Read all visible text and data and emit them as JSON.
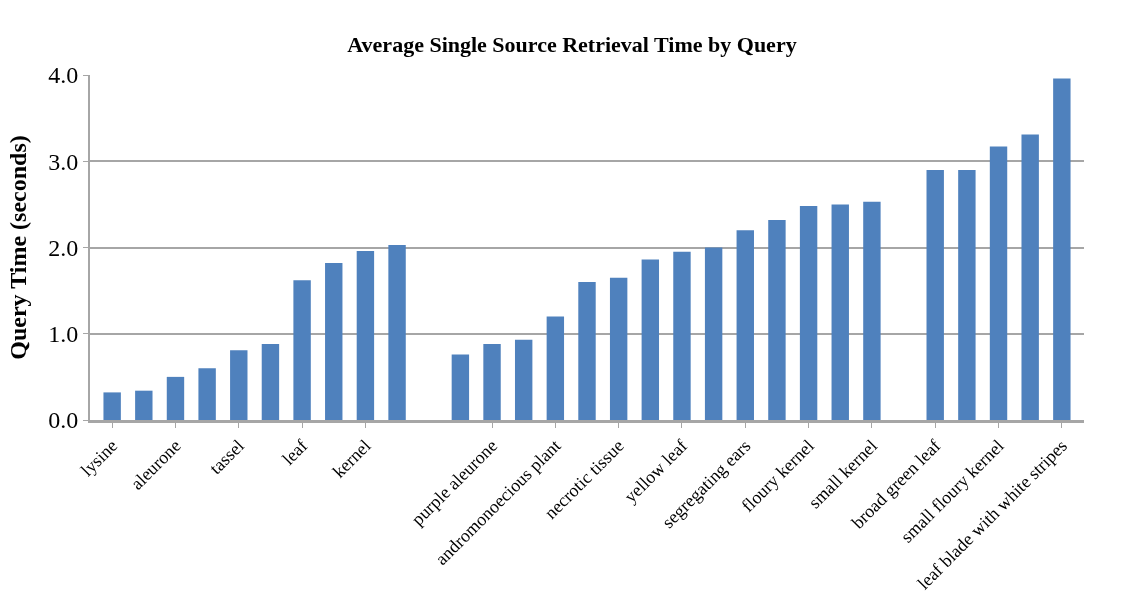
{
  "chart_data": {
    "type": "bar",
    "title": "Average Single Source Retrieval Time by Query",
    "ylabel": "Query Time (seconds)",
    "categories": [
      "lysine",
      null,
      "aleurone",
      null,
      "tassel",
      null,
      "leaf",
      null,
      "kernel",
      null,
      null,
      null,
      "purple aleurone",
      null,
      "andromonoecious plant",
      null,
      "necrotic tissue",
      null,
      "yellow leaf",
      null,
      "segregating ears",
      null,
      "floury kernel",
      null,
      "small kernel",
      null,
      "broad green leaf",
      null,
      "small floury kernel",
      null,
      "leaf blade with white stripes"
    ],
    "values": [
      0.32,
      0.34,
      0.5,
      0.6,
      0.81,
      0.88,
      1.62,
      1.82,
      1.96,
      2.03,
      null,
      0.76,
      0.88,
      0.93,
      1.2,
      1.6,
      1.65,
      1.86,
      1.95,
      2.0,
      2.2,
      2.32,
      2.48,
      2.5,
      2.53,
      null,
      2.9,
      2.9,
      3.17,
      3.31,
      3.96
    ],
    "color": "#4f81bd",
    "ylim": [
      0,
      4
    ],
    "yticks": [
      {
        "value": 0,
        "label": "0.0"
      },
      {
        "value": 1,
        "label": "1.0"
      },
      {
        "value": 2,
        "label": "2.0"
      },
      {
        "value": 3,
        "label": "3.0"
      },
      {
        "value": 4,
        "label": "4.0"
      }
    ],
    "grid": "y"
  }
}
